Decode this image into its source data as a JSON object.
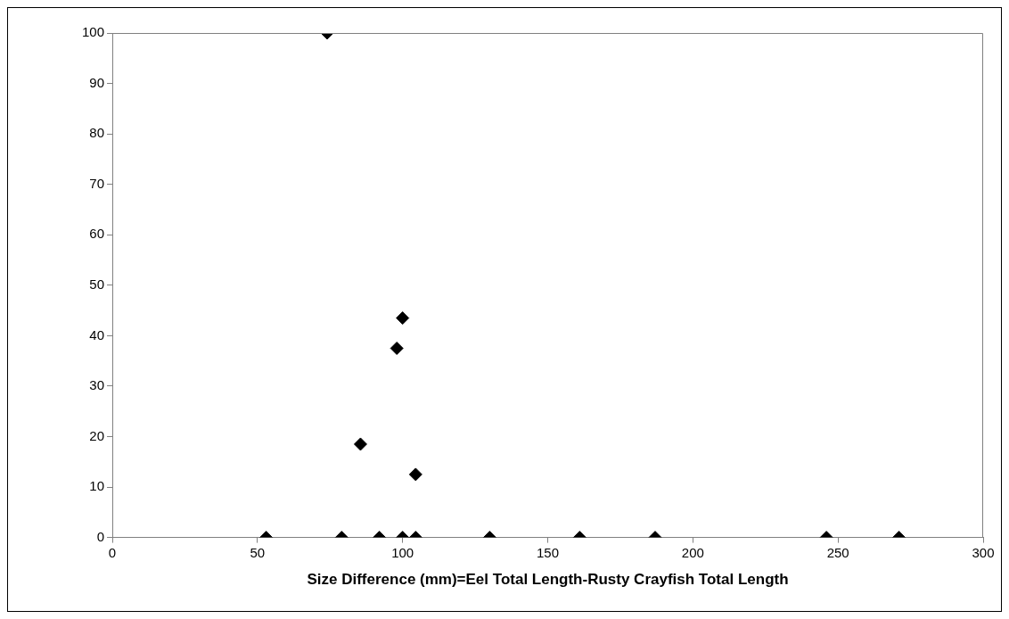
{
  "chart_data": {
    "type": "scatter",
    "xlabel": "Size Difference (mm)=Eel Total Length-Rusty Crayfish Total Length",
    "x": [
      53,
      74,
      79,
      85.5,
      92,
      98,
      100,
      100,
      104.5,
      104.5,
      130,
      161,
      187,
      246,
      271
    ],
    "values": [
      0,
      100,
      0,
      18.5,
      0,
      37.5,
      43.5,
      0,
      0,
      12.5,
      0,
      0,
      0,
      0,
      0
    ],
    "color": "#000000",
    "marker": "diamond",
    "xlim": [
      0,
      300
    ],
    "xticks": [
      0,
      50,
      100,
      150,
      200,
      250,
      300
    ],
    "ylim": [
      0,
      100
    ],
    "yticks": [
      0,
      10,
      20,
      30,
      40,
      50,
      60,
      70,
      80,
      90,
      100
    ]
  }
}
